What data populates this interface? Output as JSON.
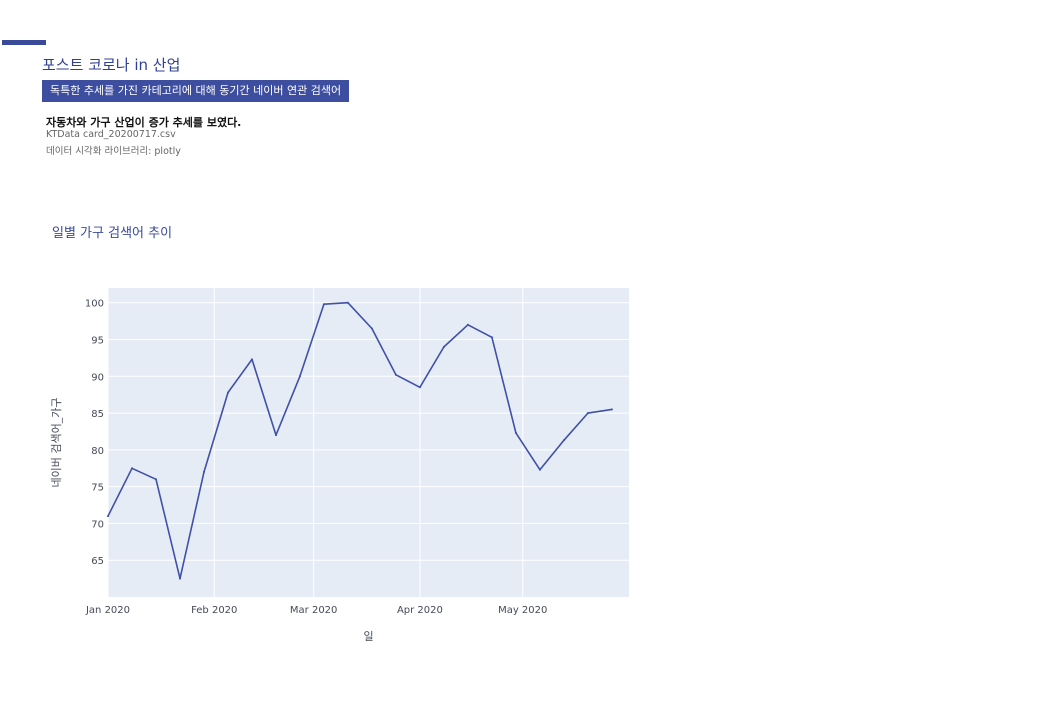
{
  "header": {
    "title": "포스트 코로나 in 산업",
    "subtitle": "독특한 추세를 가진 카테고리에 대해 동기간 네이버 연관 검색어",
    "summary": "자동차와 가구 산업이 증가 추세를 보였다.",
    "source": "KTData card_20200717.csv",
    "library": "데이터 시각화 라이브러리: plotly"
  },
  "colors": {
    "accent": "#3a4a9a",
    "plot_background": "#e5ecf6",
    "line": "#3f51a8",
    "grid": "#ffffff"
  },
  "chart_data": {
    "type": "line",
    "title": "일별 가구 검색어 추이",
    "xlabel": "일",
    "ylabel": "네이버 검색어_가구",
    "x": [
      "2020-01-01",
      "2020-01-08",
      "2020-01-15",
      "2020-01-22",
      "2020-01-29",
      "2020-02-05",
      "2020-02-12",
      "2020-02-19",
      "2020-02-26",
      "2020-03-04",
      "2020-03-11",
      "2020-03-18",
      "2020-03-25",
      "2020-04-01",
      "2020-04-08",
      "2020-04-15",
      "2020-04-22",
      "2020-04-29",
      "2020-05-06",
      "2020-05-13",
      "2020-05-20",
      "2020-05-27"
    ],
    "y": [
      71.0,
      77.5,
      76.0,
      62.5,
      77.0,
      87.8,
      92.3,
      82.0,
      90.0,
      99.8,
      100.0,
      96.5,
      90.2,
      88.5,
      94.0,
      97.0,
      95.3,
      82.3,
      77.3,
      81.3,
      85.0,
      85.5
    ],
    "xlim": [
      "2020-01-01",
      "2020-06-01"
    ],
    "ylim": [
      60,
      102
    ],
    "yticks": [
      65,
      70,
      75,
      80,
      85,
      90,
      95,
      100
    ],
    "xticks": [
      {
        "date": "2020-01-01",
        "label": "Jan 2020"
      },
      {
        "date": "2020-02-01",
        "label": "Feb 2020"
      },
      {
        "date": "2020-03-01",
        "label": "Mar 2020"
      },
      {
        "date": "2020-04-01",
        "label": "Apr 2020"
      },
      {
        "date": "2020-05-01",
        "label": "May 2020"
      }
    ],
    "grid": true,
    "legend": "none"
  }
}
